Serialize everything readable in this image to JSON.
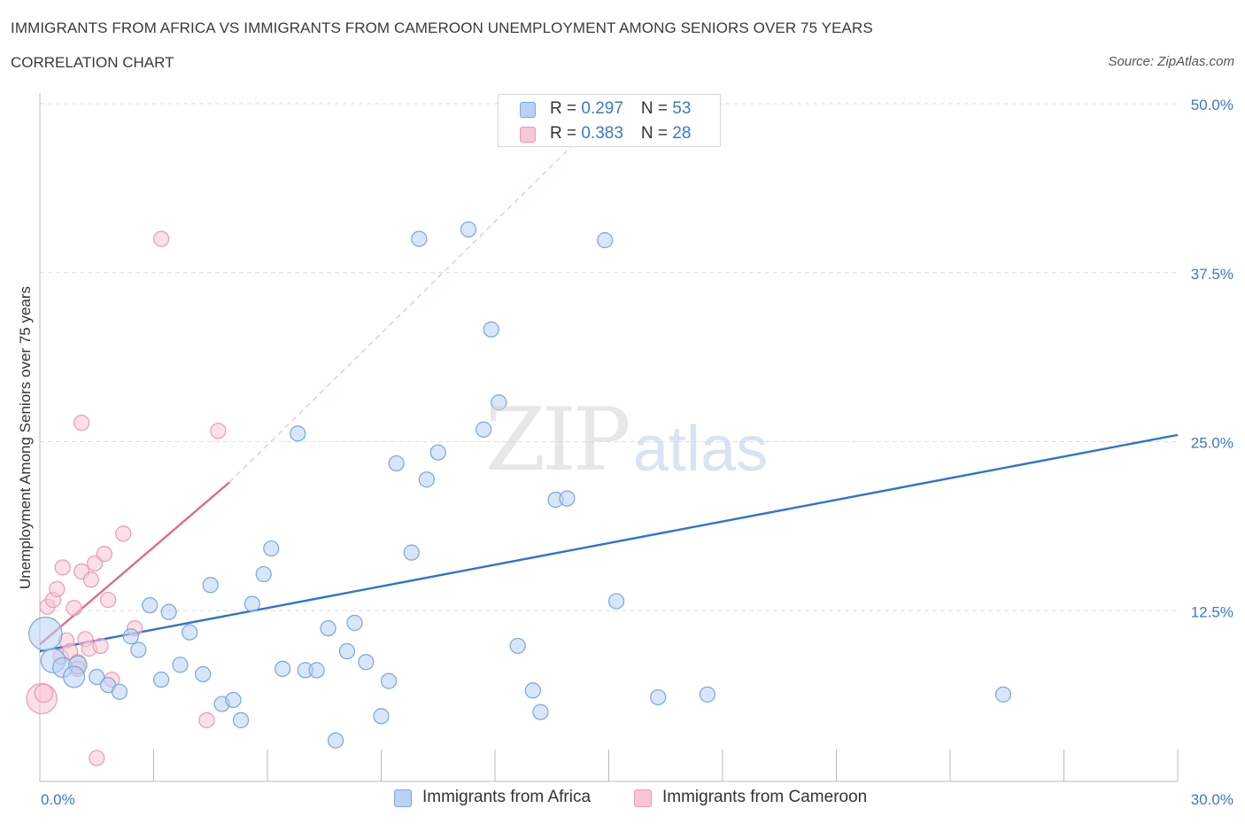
{
  "title": "IMMIGRANTS FROM AFRICA VS IMMIGRANTS FROM CAMEROON UNEMPLOYMENT AMONG SENIORS OVER 75 YEARS",
  "subtitle": "CORRELATION CHART",
  "source": "Source: ZipAtlas.com",
  "watermark": {
    "zip": "ZIP",
    "atlas": "atlas"
  },
  "colors": {
    "africa_fill": "#b8d2f4",
    "africa_stroke": "#7aa6dc",
    "africa_line": "#2f73d0",
    "cameroon_fill": "#f8c6d4",
    "cameroon_stroke": "#ec9ab2",
    "cameroon_line": "#e06a92",
    "tick_label": "#3c78c8",
    "grid": "#dddddd"
  },
  "legend": {
    "africa": {
      "r_label": "R = ",
      "r_value": "0.297",
      "n_label": "N = ",
      "n_value": "53"
    },
    "cameroon": {
      "r_label": "R = ",
      "r_value": "0.383",
      "n_label": "N = ",
      "n_value": "28"
    }
  },
  "chart_data": {
    "type": "scatter",
    "title": "IMMIGRANTS FROM AFRICA VS IMMIGRANTS FROM CAMEROON UNEMPLOYMENT AMONG SENIORS OVER 75 YEARS",
    "subtitle": "CORRELATION CHART",
    "xlabel": "",
    "ylabel": "Unemployment Among Seniors over 75 years",
    "xlim": [
      0,
      30
    ],
    "ylim": [
      0,
      50
    ],
    "x_tick_labels": [
      "0.0%",
      "30.0%"
    ],
    "y_ticks": [
      12.5,
      25.0,
      37.5,
      50.0
    ],
    "y_tick_labels": [
      "12.5%",
      "25.0%",
      "37.5%",
      "50.0%"
    ],
    "grid": true,
    "legend_position": "top-center and bottom",
    "series": [
      {
        "name": "Immigrants from Africa",
        "R": 0.297,
        "N": 53,
        "trend": {
          "x0": 0.0,
          "y0": 9.5,
          "x1": 30.0,
          "y1": 25.5
        },
        "points": [
          [
            0.15,
            10.8,
            2.2
          ],
          [
            0.35,
            8.8,
            1.6
          ],
          [
            0.6,
            8.3,
            1.3
          ],
          [
            1.0,
            8.5,
            1.2
          ],
          [
            0.9,
            7.6,
            1.4
          ],
          [
            1.5,
            7.6,
            1.0
          ],
          [
            1.8,
            7.0,
            1.0
          ],
          [
            2.1,
            6.5,
            1.0
          ],
          [
            2.4,
            10.6,
            1.0
          ],
          [
            2.6,
            9.6,
            1.0
          ],
          [
            2.9,
            12.9,
            1.0
          ],
          [
            3.2,
            7.4,
            1.0
          ],
          [
            3.4,
            12.4,
            1.0
          ],
          [
            3.7,
            8.5,
            1.0
          ],
          [
            3.95,
            10.9,
            1.0
          ],
          [
            4.3,
            7.8,
            1.0
          ],
          [
            4.5,
            14.4,
            1.0
          ],
          [
            4.8,
            5.6,
            1.0
          ],
          [
            5.1,
            5.9,
            1.0
          ],
          [
            5.3,
            4.4,
            1.0
          ],
          [
            5.6,
            13.0,
            1.0
          ],
          [
            5.9,
            15.2,
            1.0
          ],
          [
            6.1,
            17.1,
            1.0
          ],
          [
            6.4,
            8.2,
            1.0
          ],
          [
            6.8,
            25.6,
            1.0
          ],
          [
            7.0,
            8.1,
            1.0
          ],
          [
            7.3,
            8.1,
            1.0
          ],
          [
            7.6,
            11.2,
            1.0
          ],
          [
            7.8,
            2.9,
            1.0
          ],
          [
            8.1,
            9.5,
            1.0
          ],
          [
            8.3,
            11.6,
            1.0
          ],
          [
            8.6,
            8.7,
            1.0
          ],
          [
            9.0,
            4.7,
            1.0
          ],
          [
            9.2,
            7.3,
            1.0
          ],
          [
            9.4,
            23.4,
            1.0
          ],
          [
            9.8,
            16.8,
            1.0
          ],
          [
            10.0,
            40.0,
            1.0
          ],
          [
            10.2,
            22.2,
            1.0
          ],
          [
            10.5,
            24.2,
            1.0
          ],
          [
            11.3,
            40.7,
            1.0
          ],
          [
            11.7,
            25.9,
            1.0
          ],
          [
            11.9,
            33.3,
            1.0
          ],
          [
            12.1,
            27.9,
            1.0
          ],
          [
            12.6,
            9.9,
            1.0
          ],
          [
            13.0,
            6.6,
            1.0
          ],
          [
            13.2,
            5.0,
            1.0
          ],
          [
            13.6,
            20.7,
            1.0
          ],
          [
            13.9,
            20.8,
            1.0
          ],
          [
            14.9,
            39.9,
            1.0
          ],
          [
            15.2,
            13.2,
            1.0
          ],
          [
            16.3,
            6.1,
            1.0
          ],
          [
            17.6,
            6.3,
            1.0
          ],
          [
            25.4,
            6.3,
            1.0
          ]
        ]
      },
      {
        "name": "Immigrants from Cameroon",
        "R": 0.383,
        "N": 28,
        "trend": {
          "x0": 0.0,
          "y0": 10.0,
          "x1": 5.0,
          "y1": 22.0
        },
        "trend_extended": {
          "x0": 5.0,
          "y0": 22.0,
          "x1": 14.8,
          "y1": 49.0
        },
        "points": [
          [
            0.05,
            6.0,
            2.0
          ],
          [
            0.1,
            6.4,
            1.2
          ],
          [
            0.2,
            12.8,
            1.0
          ],
          [
            0.35,
            13.3,
            1.0
          ],
          [
            0.45,
            14.1,
            1.0
          ],
          [
            0.55,
            9.1,
            1.0
          ],
          [
            0.6,
            15.7,
            1.0
          ],
          [
            0.7,
            10.3,
            1.0
          ],
          [
            0.8,
            9.5,
            1.0
          ],
          [
            0.9,
            12.7,
            1.0
          ],
          [
            1.0,
            8.7,
            1.0
          ],
          [
            1.1,
            15.4,
            1.0
          ],
          [
            1.1,
            26.4,
            1.0
          ],
          [
            1.2,
            10.4,
            1.0
          ],
          [
            1.3,
            9.7,
            1.0
          ],
          [
            1.35,
            14.8,
            1.0
          ],
          [
            1.45,
            16.0,
            1.0
          ],
          [
            1.5,
            1.6,
            1.0
          ],
          [
            1.6,
            9.9,
            1.0
          ],
          [
            1.7,
            16.7,
            1.0
          ],
          [
            1.8,
            13.3,
            1.0
          ],
          [
            1.9,
            7.4,
            1.0
          ],
          [
            2.2,
            18.2,
            1.0
          ],
          [
            2.5,
            11.2,
            1.0
          ],
          [
            3.2,
            40.0,
            1.0
          ],
          [
            4.4,
            4.4,
            1.0
          ],
          [
            4.7,
            25.8,
            1.0
          ],
          [
            1.0,
            8.2,
            1.0
          ]
        ]
      }
    ]
  },
  "axis": {
    "ylabel": "Unemployment Among Seniors over 75 years",
    "x_min_label": "0.0%",
    "x_max_label": "30.0%"
  },
  "bottom_legend": {
    "africa": "Immigrants from Africa",
    "cameroon": "Immigrants from Cameroon"
  }
}
